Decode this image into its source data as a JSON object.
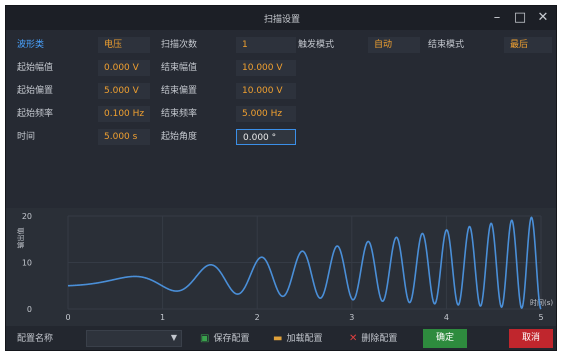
{
  "window": {
    "title": "扫描设置",
    "minimize": "–",
    "maximize": "□",
    "close": "✕"
  },
  "params": {
    "row1": {
      "mode_label": "波形类",
      "mode_value": "电压",
      "count_label": "扫描次数",
      "count_value": "1",
      "trigger_label": "触发模式",
      "trigger_value": "自动",
      "end_label": "结束模式",
      "end_value": "最后"
    },
    "row2": {
      "start_amp_label": "起始幅值",
      "start_amp_value": "0.000 V",
      "end_amp_label": "结束幅值",
      "end_amp_value": "10.000 V"
    },
    "row3": {
      "start_offset_label": "起始偏置",
      "start_offset_value": "5.000 V",
      "end_offset_label": "结束偏置",
      "end_offset_value": "10.000 V"
    },
    "row4": {
      "start_freq_label": "起始频率",
      "start_freq_value": "0.100 Hz",
      "end_freq_label": "结束频率",
      "end_freq_value": "5.000 Hz"
    },
    "row5": {
      "time_label": "时间",
      "time_value": "5.000 s",
      "phase_label": "起始角度",
      "phase_value": "0.000 °"
    }
  },
  "chart_data": {
    "type": "line",
    "ylabel": "输出值",
    "xlabel": "时间(s)",
    "xlim": [
      0,
      5
    ],
    "ylim": [
      0,
      20
    ],
    "x_ticks": [
      "0",
      "1",
      "2",
      "3",
      "4",
      "5"
    ],
    "y_ticks": [
      "0",
      "10",
      "20"
    ],
    "series_color": "#4a8fd8",
    "signal": {
      "start_amplitude": 0,
      "end_amplitude": 10,
      "start_offset": 5,
      "end_offset": 10,
      "start_frequency": 0.1,
      "end_frequency": 5,
      "duration": 5,
      "start_phase": 0
    }
  },
  "bottom": {
    "config_name_label": "配置名称",
    "save_label": "保存配置",
    "load_label": "加载配置",
    "delete_label": "删除配置",
    "ok_label": "确定",
    "cancel_label": "取消"
  },
  "colors": {
    "accent_blue": "#4aa3ff",
    "value_orange": "#f0a030",
    "ok_green": "#2e8b3e",
    "cancel_red": "#c0262d"
  }
}
